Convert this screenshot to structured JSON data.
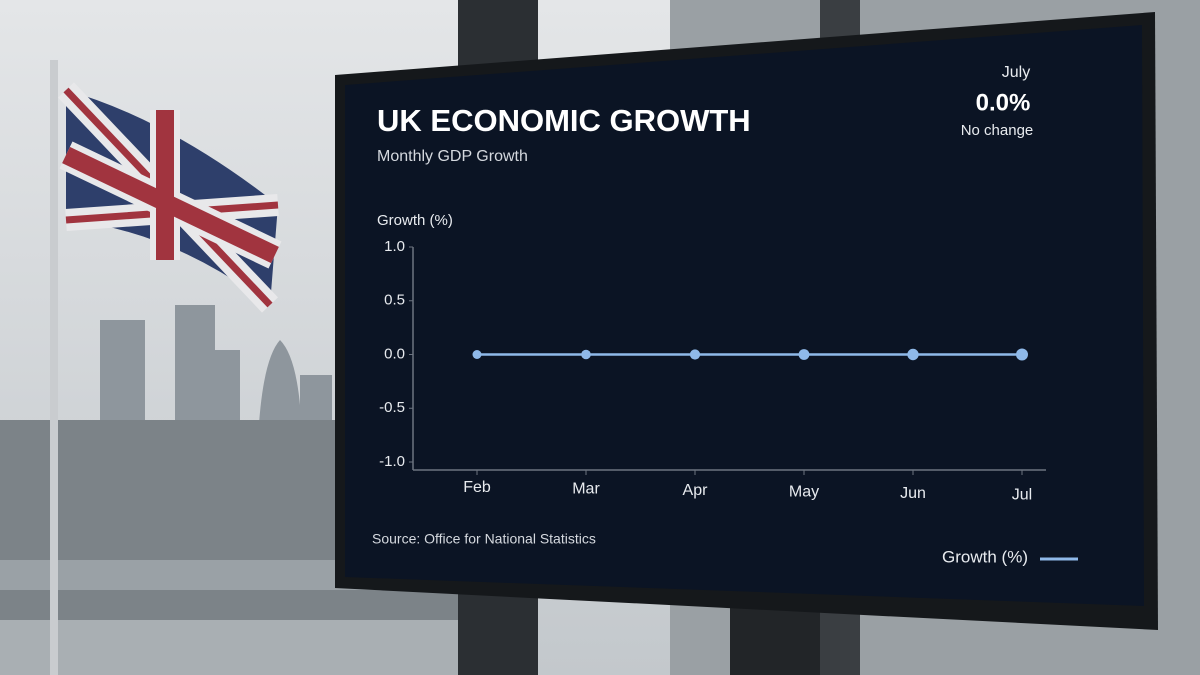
{
  "chart_data": {
    "type": "line",
    "title": "UK ECONOMIC GROWTH",
    "subtitle": "Monthly GDP Growth",
    "headline": {
      "month": "July",
      "value_label": "0.0%",
      "note": "No change"
    },
    "y_label": "Growth (%)",
    "source": "Source: Office for National Statistics",
    "categories": [
      "Feb",
      "Mar",
      "Apr",
      "May",
      "Jun",
      "Jul"
    ],
    "series": [
      {
        "name": "Growth (%)",
        "color": "#8fb9e9",
        "values": [
          0.0,
          0.0,
          0.0,
          0.0,
          0.0,
          0.0
        ]
      }
    ],
    "ylim": [
      -1.0,
      1.0
    ],
    "yticks": [
      {
        "value": 1.0,
        "label": "1.0"
      },
      0.5,
      {
        "value": 0.0,
        "label": "0.0"
      },
      -0.5,
      {
        "value": -1.0,
        "label": "-1.0"
      }
    ],
    "legend": "bottom-right"
  }
}
